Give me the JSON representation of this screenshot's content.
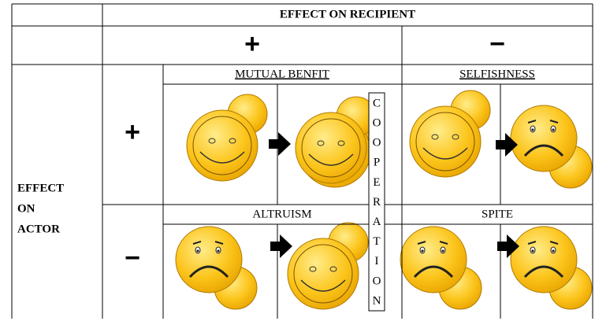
{
  "header": {
    "title": "EFFECT ON RECIPIENT",
    "plus": "+",
    "minus": "−"
  },
  "actor": {
    "lines": [
      "EFFECT",
      "ON",
      "ACTOR"
    ],
    "plus": "+",
    "minus": "−"
  },
  "quadrants": [
    "MUTUAL BENFIT",
    "SELFISHNESS",
    "ALTRUISM",
    "SPITE"
  ],
  "cooperation": [
    "C",
    "O",
    "O",
    "P",
    "E",
    "R",
    "A",
    "T",
    "I",
    "O",
    "N"
  ]
}
